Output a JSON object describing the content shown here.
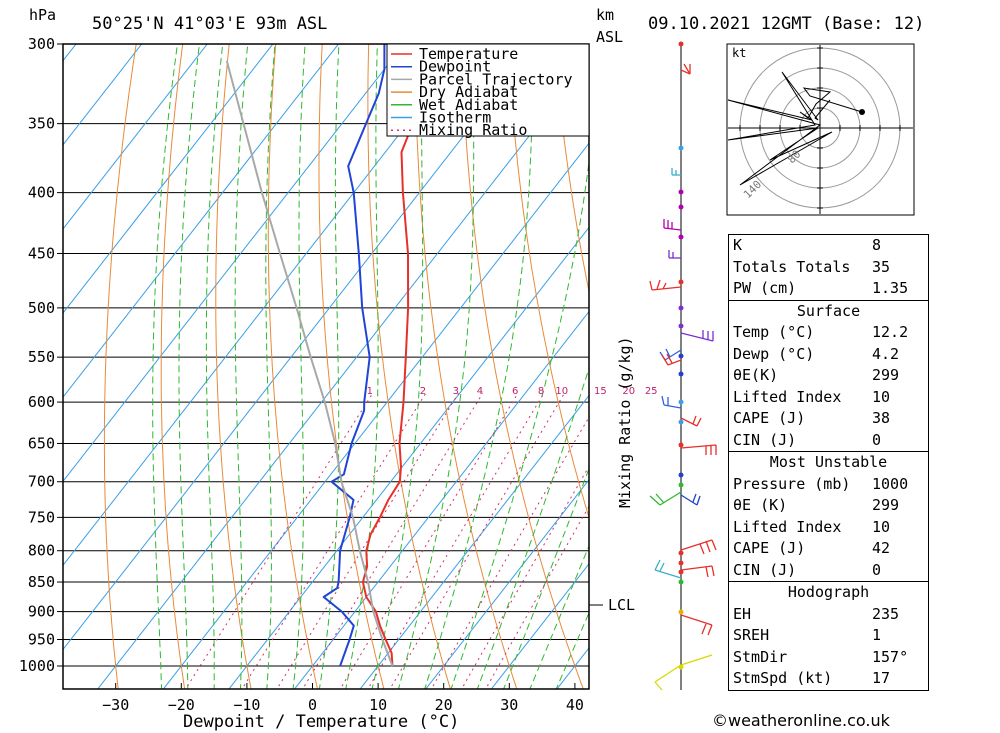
{
  "header": {
    "pressure_unit": "hPa",
    "location": "50°25'N  41°03'E  93m  ASL",
    "km_label": "km",
    "asl_label": "ASL",
    "datetime": "09.10.2021  12GMT  (Base: 12)"
  },
  "axes": {
    "xlabel": "Dewpoint / Temperature (°C)",
    "mixing_ratio_label": "Mixing Ratio (g/kg)",
    "lcl_label": "LCL",
    "hodo_unit": "kt",
    "hodo_ring_labels": [
      "80",
      "140"
    ]
  },
  "legend": [
    {
      "label": "Temperature",
      "color": "#e8302a"
    },
    {
      "label": "Dewpoint",
      "color": "#1f44d6"
    },
    {
      "label": "Parcel Trajectory",
      "color": "#a8a8a8"
    },
    {
      "label": "Dry Adiabat",
      "color": "#e88a3a"
    },
    {
      "label": "Wet Adiabat",
      "color": "#2fb82f"
    },
    {
      "label": "Isotherm",
      "color": "#3a9fe6"
    },
    {
      "label": "Mixing Ratio",
      "color": "#d0306e"
    }
  ],
  "indices": {
    "basic": [
      {
        "label": "K",
        "value": "8"
      },
      {
        "label": "Totals Totals",
        "value": "35"
      },
      {
        "label": "PW (cm)",
        "value": "1.35"
      }
    ],
    "surface_title": "Surface",
    "surface": [
      {
        "label": "Temp (°C)",
        "value": "12.2"
      },
      {
        "label": "Dewp (°C)",
        "value": "4.2"
      },
      {
        "label": "θE(K)",
        "value": "299"
      },
      {
        "label": "Lifted Index",
        "value": "10"
      },
      {
        "label": "CAPE (J)",
        "value": "38"
      },
      {
        "label": "CIN (J)",
        "value": "0"
      }
    ],
    "unstable_title": "Most Unstable",
    "unstable": [
      {
        "label": "Pressure (mb)",
        "value": "1000"
      },
      {
        "label": "θE (K)",
        "value": "299"
      },
      {
        "label": "Lifted Index",
        "value": "10"
      },
      {
        "label": "CAPE (J)",
        "value": "42"
      },
      {
        "label": "CIN (J)",
        "value": "0"
      }
    ],
    "hodograph_title": "Hodograph",
    "hodograph": [
      {
        "label": "EH",
        "value": "235"
      },
      {
        "label": "SREH",
        "value": "1"
      },
      {
        "label": "StmDir",
        "value": "157°"
      },
      {
        "label": "StmSpd (kt)",
        "value": "17"
      }
    ]
  },
  "copyright": "©weatheronline.co.uk",
  "chart_data": {
    "type": "line",
    "title": "50°25'N  41°03'E  93m  ASL",
    "xlabel": "Dewpoint / Temperature (°C)",
    "ylabel": "hPa",
    "xlim": [
      -30,
      40
    ],
    "ylim": [
      1000,
      300
    ],
    "x_ticks": [
      -30,
      -20,
      -10,
      0,
      10,
      20,
      30,
      40
    ],
    "pressure_ticks": [
      300,
      350,
      400,
      450,
      500,
      550,
      600,
      650,
      700,
      750,
      800,
      850,
      900,
      950,
      1000
    ],
    "mixing_ratio_values": [
      1,
      2,
      3,
      4,
      6,
      8,
      10,
      15,
      20,
      25
    ],
    "lcl_pressure": 890,
    "series": [
      {
        "name": "Temperature",
        "color": "#e8302a",
        "points": [
          {
            "p": 1000,
            "t": 12.2
          },
          {
            "p": 975,
            "t": 10.5
          },
          {
            "p": 950,
            "t": 8.0
          },
          {
            "p": 925,
            "t": 5.5
          },
          {
            "p": 900,
            "t": 3.2
          },
          {
            "p": 875,
            "t": 0.0
          },
          {
            "p": 850,
            "t": -2.3
          },
          {
            "p": 825,
            "t": -3.5
          },
          {
            "p": 800,
            "t": -5.5
          },
          {
            "p": 775,
            "t": -6.8
          },
          {
            "p": 750,
            "t": -7.4
          },
          {
            "p": 725,
            "t": -8.2
          },
          {
            "p": 700,
            "t": -8.6
          },
          {
            "p": 680,
            "t": -10.2
          },
          {
            "p": 650,
            "t": -13.2
          },
          {
            "p": 600,
            "t": -17.5
          },
          {
            "p": 550,
            "t": -22.5
          },
          {
            "p": 500,
            "t": -28.0
          },
          {
            "p": 450,
            "t": -34.5
          },
          {
            "p": 400,
            "t": -42.5
          },
          {
            "p": 370,
            "t": -47.5
          },
          {
            "p": 330,
            "t": -51.0
          },
          {
            "p": 310,
            "t": -53.0
          },
          {
            "p": 300,
            "t": -55.0
          }
        ]
      },
      {
        "name": "Dewpoint",
        "color": "#1f44d6",
        "points": [
          {
            "p": 1000,
            "t": 4.2
          },
          {
            "p": 950,
            "t": 2.5
          },
          {
            "p": 925,
            "t": 1.5
          },
          {
            "p": 900,
            "t": -2.0
          },
          {
            "p": 875,
            "t": -6.5
          },
          {
            "p": 860,
            "t": -5.5
          },
          {
            "p": 850,
            "t": -6.0
          },
          {
            "p": 800,
            "t": -9.5
          },
          {
            "p": 750,
            "t": -12.0
          },
          {
            "p": 725,
            "t": -13.5
          },
          {
            "p": 700,
            "t": -19.0
          },
          {
            "p": 690,
            "t": -18.0
          },
          {
            "p": 650,
            "t": -20.5
          },
          {
            "p": 610,
            "t": -22.5
          },
          {
            "p": 600,
            "t": -23.5
          },
          {
            "p": 550,
            "t": -28.0
          },
          {
            "p": 500,
            "t": -35.0
          },
          {
            "p": 450,
            "t": -42.0
          },
          {
            "p": 400,
            "t": -50.0
          },
          {
            "p": 380,
            "t": -54.0
          },
          {
            "p": 330,
            "t": -58.0
          },
          {
            "p": 315,
            "t": -60.0
          },
          {
            "p": 300,
            "t": -63.0
          }
        ]
      },
      {
        "name": "Parcel Trajectory",
        "color": "#a8a8a8",
        "points": [
          {
            "p": 1000,
            "t": 12.2
          },
          {
            "p": 950,
            "t": 7.5
          },
          {
            "p": 900,
            "t": 2.8
          },
          {
            "p": 850,
            "t": -1.5
          },
          {
            "p": 800,
            "t": -6.5
          },
          {
            "p": 750,
            "t": -11.5
          },
          {
            "p": 700,
            "t": -17.5
          },
          {
            "p": 650,
            "t": -23.0
          },
          {
            "p": 600,
            "t": -29.5
          },
          {
            "p": 550,
            "t": -37.0
          },
          {
            "p": 500,
            "t": -45.0
          },
          {
            "p": 450,
            "t": -54.0
          },
          {
            "p": 400,
            "t": -64.0
          },
          {
            "p": 350,
            "t": -75.0
          },
          {
            "p": 310,
            "t": -85.0
          }
        ]
      }
    ]
  }
}
